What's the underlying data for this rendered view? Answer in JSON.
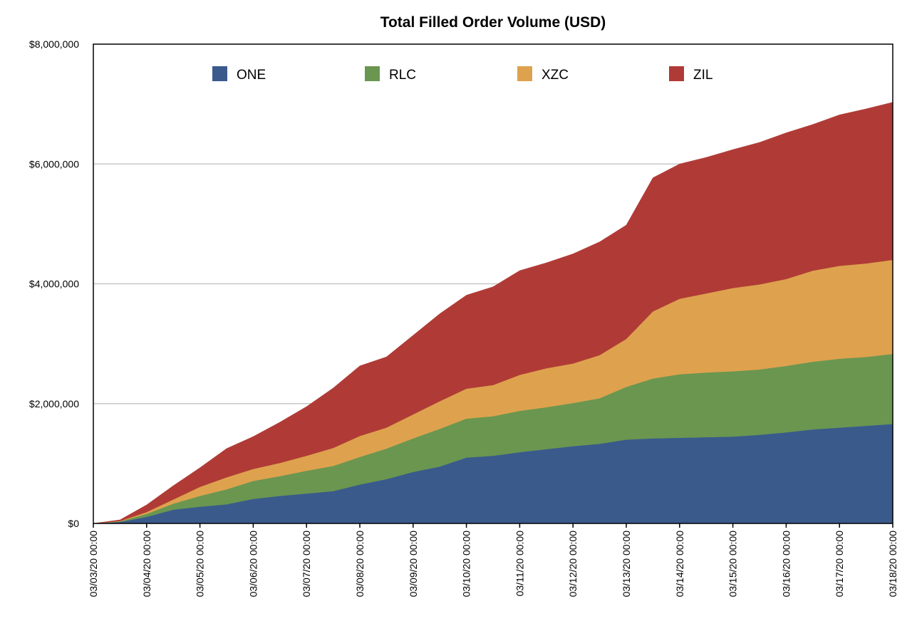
{
  "chart_data": {
    "type": "area",
    "stacked": true,
    "title": "Total Filled Order Volume (USD)",
    "xlabel": "",
    "ylabel": "",
    "ylim": [
      0,
      8000000
    ],
    "y_ticks": [
      {
        "value": 0,
        "label": "$0"
      },
      {
        "value": 2000000,
        "label": "$2,000,000"
      },
      {
        "value": 4000000,
        "label": "$4,000,000"
      },
      {
        "value": 6000000,
        "label": "$6,000,000"
      },
      {
        "value": 8000000,
        "label": "$8,000,000"
      }
    ],
    "x_ticks": [
      "03/03/20 00:00",
      "03/04/20 00:00",
      "03/05/20 00:00",
      "03/06/20 00:00",
      "03/07/20 00:00",
      "03/08/20 00:00",
      "03/09/20 00:00",
      "03/10/20 00:00",
      "03/11/20 00:00",
      "03/12/20 00:00",
      "03/13/20 00:00",
      "03/14/20 00:00",
      "03/15/20 00:00",
      "03/16/20 00:00",
      "03/17/20 00:00",
      "03/18/20 00:00"
    ],
    "grid": "horizontal",
    "legend_position": "top",
    "x": [
      "03/03/20 00:00",
      "03/03/20 12:00",
      "03/04/20 00:00",
      "03/04/20 12:00",
      "03/05/20 00:00",
      "03/05/20 12:00",
      "03/06/20 00:00",
      "03/06/20 12:00",
      "03/07/20 00:00",
      "03/07/20 12:00",
      "03/08/20 00:00",
      "03/08/20 12:00",
      "03/09/20 00:00",
      "03/09/20 12:00",
      "03/10/20 00:00",
      "03/10/20 12:00",
      "03/11/20 00:00",
      "03/11/20 12:00",
      "03/12/20 00:00",
      "03/12/20 12:00",
      "03/13/20 00:00",
      "03/13/20 12:00",
      "03/14/20 00:00",
      "03/14/20 12:00",
      "03/15/20 00:00",
      "03/15/20 12:00",
      "03/16/20 00:00",
      "03/16/20 12:00",
      "03/17/20 00:00",
      "03/17/20 12:00",
      "03/18/20 00:00"
    ],
    "series": [
      {
        "name": "ONE",
        "color": "#3a5a8c",
        "values": [
          0,
          25000,
          110000,
          230000,
          280000,
          320000,
          410000,
          460000,
          500000,
          540000,
          650000,
          740000,
          860000,
          950000,
          1100000,
          1130000,
          1190000,
          1240000,
          1290000,
          1330000,
          1400000,
          1420000,
          1430000,
          1440000,
          1450000,
          1480000,
          1520000,
          1570000,
          1600000,
          1630000,
          1660000
        ]
      },
      {
        "name": "RLC",
        "color": "#6a9650",
        "values": [
          0,
          10000,
          50000,
          100000,
          180000,
          250000,
          300000,
          330000,
          380000,
          420000,
          460000,
          510000,
          560000,
          630000,
          650000,
          660000,
          690000,
          700000,
          720000,
          760000,
          880000,
          1000000,
          1060000,
          1080000,
          1090000,
          1090000,
          1110000,
          1130000,
          1150000,
          1150000,
          1170000
        ]
      },
      {
        "name": "XZC",
        "color": "#dea24e",
        "values": [
          0,
          5000,
          30000,
          70000,
          150000,
          200000,
          200000,
          220000,
          250000,
          300000,
          350000,
          350000,
          400000,
          460000,
          500000,
          520000,
          600000,
          650000,
          660000,
          720000,
          800000,
          1120000,
          1260000,
          1320000,
          1390000,
          1420000,
          1450000,
          1520000,
          1550000,
          1560000,
          1570000
        ]
      },
      {
        "name": "ZIL",
        "color": "#b03b36",
        "values": [
          0,
          20000,
          120000,
          230000,
          320000,
          480000,
          540000,
          680000,
          820000,
          1000000,
          1170000,
          1180000,
          1320000,
          1460000,
          1560000,
          1640000,
          1740000,
          1760000,
          1830000,
          1890000,
          1900000,
          2230000,
          2250000,
          2270000,
          2310000,
          2370000,
          2440000,
          2440000,
          2520000,
          2580000,
          2630000
        ]
      }
    ]
  }
}
